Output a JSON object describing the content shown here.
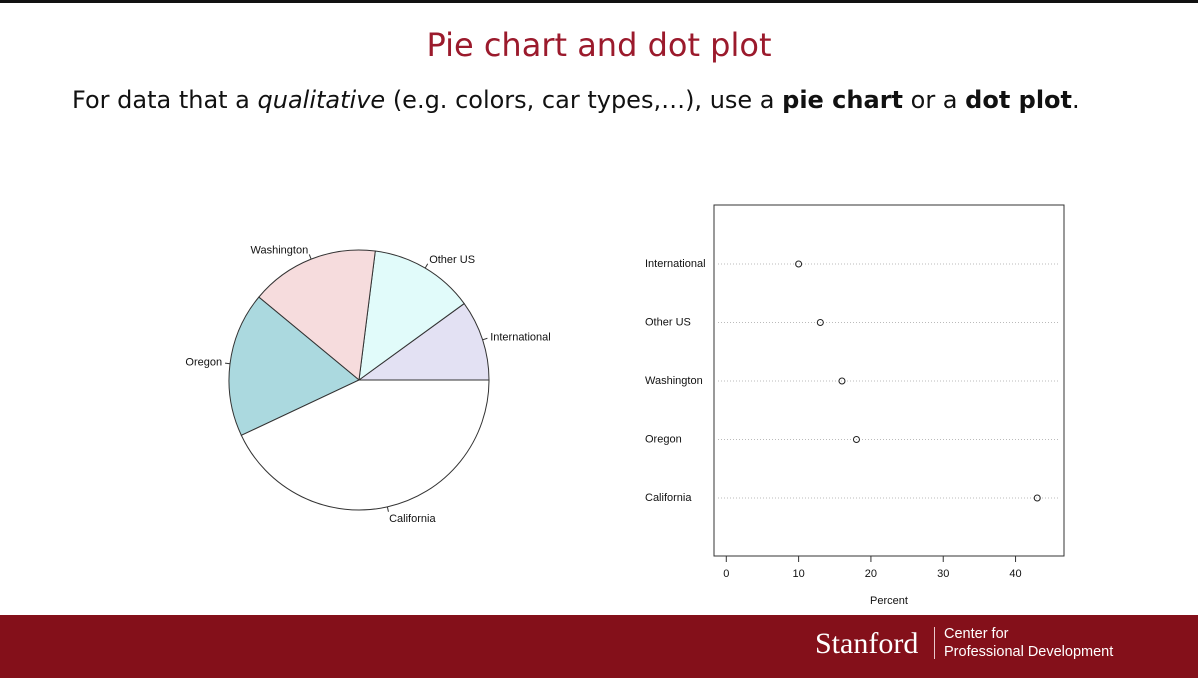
{
  "slide": {
    "title": "Pie chart and dot plot",
    "subtitle": {
      "t1": "For data that a ",
      "t2": "qualitative",
      "t3": " (e.g. colors, car types,…), use a ",
      "t4": "pie chart",
      "t5": " or a ",
      "t6": "dot plot",
      "t7": "."
    }
  },
  "footer": {
    "brand": "Stanford",
    "line1": "Center for",
    "line2": "Professional Development",
    "color": "#84101a"
  },
  "chart_data": [
    {
      "type": "pie",
      "categories": [
        "International",
        "Other US",
        "Washington",
        "Oregon",
        "California"
      ],
      "values": [
        10,
        13,
        16,
        18,
        43
      ],
      "colors": [
        "#e3e1f3",
        "#e1fbfa",
        "#f6dcdd",
        "#abd9df",
        "#ffffff"
      ],
      "start": "3 o'clock, counter-clockwise"
    },
    {
      "type": "scatter",
      "categories": [
        "International",
        "Other US",
        "Washington",
        "Oregon",
        "California"
      ],
      "values": [
        10,
        13,
        16,
        18,
        43
      ],
      "xlabel": "Percent",
      "xticks": [
        0,
        10,
        20,
        30,
        40
      ],
      "xlim": [
        -1.7,
        46.7
      ]
    }
  ]
}
